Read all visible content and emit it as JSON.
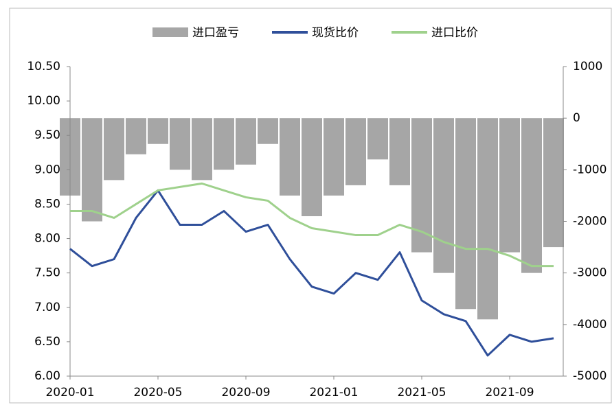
{
  "chart_data": {
    "type": "combo",
    "categories": [
      "2020-01",
      "2020-02",
      "2020-03",
      "2020-04",
      "2020-05",
      "2020-06",
      "2020-07",
      "2020-08",
      "2020-09",
      "2020-10",
      "2020-11",
      "2020-12",
      "2021-01",
      "2021-02",
      "2021-03",
      "2021-04",
      "2021-05",
      "2021-06",
      "2021-07",
      "2021-08",
      "2021-09",
      "2021-10",
      "2021-11"
    ],
    "xticks": [
      "2020-01",
      "2020-05",
      "2020-09",
      "2021-01",
      "2021-05",
      "2021-09"
    ],
    "series": [
      {
        "name": "进口盈亏",
        "type": "bar",
        "axis": "y2",
        "color": "#a6a6a6",
        "values": [
          -1500,
          -2000,
          -1200,
          -700,
          -500,
          -1000,
          -1200,
          -1000,
          -900,
          -500,
          -1500,
          -1900,
          -1500,
          -1300,
          -800,
          -1300,
          -2600,
          -3000,
          -3700,
          -3900,
          -2600,
          -3000,
          -2500
        ]
      },
      {
        "name": "现货比价",
        "type": "line",
        "color": "#2f4f9a",
        "values": [
          7.85,
          7.6,
          7.7,
          8.3,
          8.7,
          8.2,
          8.2,
          8.4,
          8.1,
          8.2,
          7.7,
          7.3,
          7.2,
          7.5,
          7.4,
          7.8,
          7.1,
          6.9,
          6.8,
          6.3,
          6.6,
          6.5,
          6.55
        ]
      },
      {
        "name": "进口比价",
        "type": "line",
        "color": "#9fd18c",
        "values": [
          8.4,
          8.4,
          8.3,
          8.5,
          8.7,
          8.75,
          8.8,
          8.7,
          8.6,
          8.55,
          8.3,
          8.15,
          8.1,
          8.05,
          8.05,
          8.2,
          8.1,
          7.95,
          7.85,
          7.85,
          7.75,
          7.6,
          7.6
        ]
      }
    ],
    "ylim": [
      6,
      10.5
    ],
    "yticks": [
      {
        "value": 6,
        "label": "6.00"
      },
      {
        "value": 6.5,
        "label": "6.50"
      },
      {
        "value": 7,
        "label": "7.00"
      },
      {
        "value": 7.5,
        "label": "7.50"
      },
      {
        "value": 8,
        "label": "8.00"
      },
      {
        "value": 8.5,
        "label": "8.50"
      },
      {
        "value": 9,
        "label": "9.00"
      },
      {
        "value": 9.5,
        "label": "9.50"
      },
      {
        "value": 10,
        "label": "10.00"
      },
      {
        "value": 10.5,
        "label": "10.50"
      }
    ],
    "y2lim": [
      -5000,
      1000
    ],
    "y2ticks": [
      -5000,
      -4000,
      -3000,
      -2000,
      -1000,
      0,
      1000
    ],
    "legend": "top"
  }
}
